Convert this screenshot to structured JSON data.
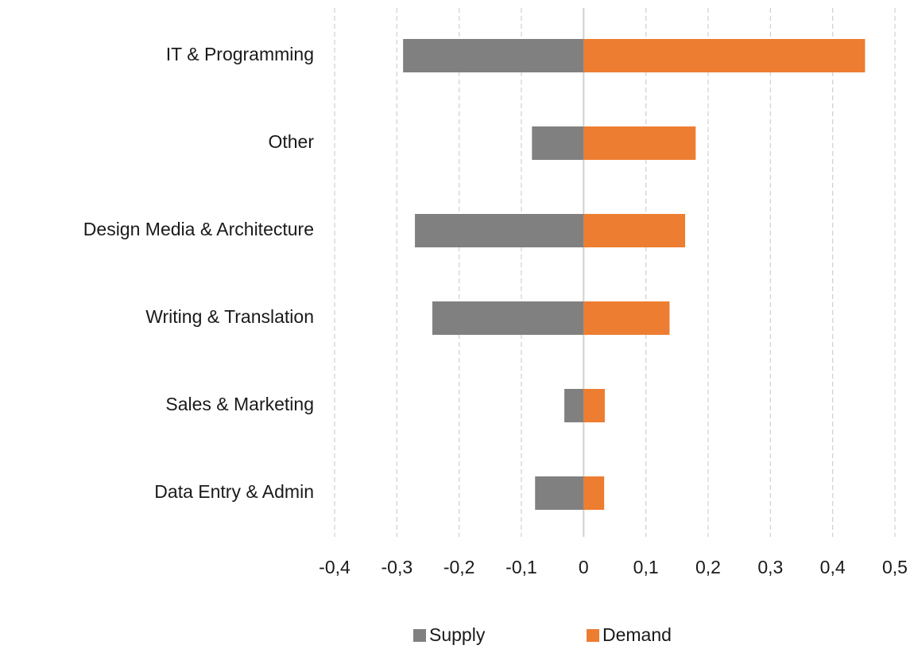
{
  "chart_data": {
    "type": "bar",
    "orientation": "horizontal",
    "categories": [
      "IT & Programming",
      "Other",
      "Design Media & Architecture",
      "Writing & Translation",
      "Sales & Marketing",
      "Data Entry & Admin"
    ],
    "series": [
      {
        "name": "Supply",
        "color": "#808080",
        "values": [
          -0.29,
          -0.083,
          -0.271,
          -0.243,
          -0.031,
          -0.078
        ]
      },
      {
        "name": "Demand",
        "color": "#ed7d31",
        "values": [
          0.452,
          0.18,
          0.163,
          0.138,
          0.034,
          0.033
        ]
      }
    ],
    "xlim": [
      -0.4,
      0.5
    ],
    "xticks": [
      {
        "value": -0.4,
        "label": "-0,4"
      },
      {
        "value": -0.3,
        "label": "-0,3"
      },
      {
        "value": -0.2,
        "label": "-0,2"
      },
      {
        "value": -0.1,
        "label": "-0,1"
      },
      0,
      {
        "value": 0.1,
        "label": "0,1"
      },
      {
        "value": 0.2,
        "label": "0,2"
      },
      {
        "value": 0.3,
        "label": "0,3"
      },
      {
        "value": 0.4,
        "label": "0,4"
      },
      {
        "value": 0.5,
        "label": "0,5"
      }
    ],
    "grid": true,
    "legend": "bottom"
  }
}
